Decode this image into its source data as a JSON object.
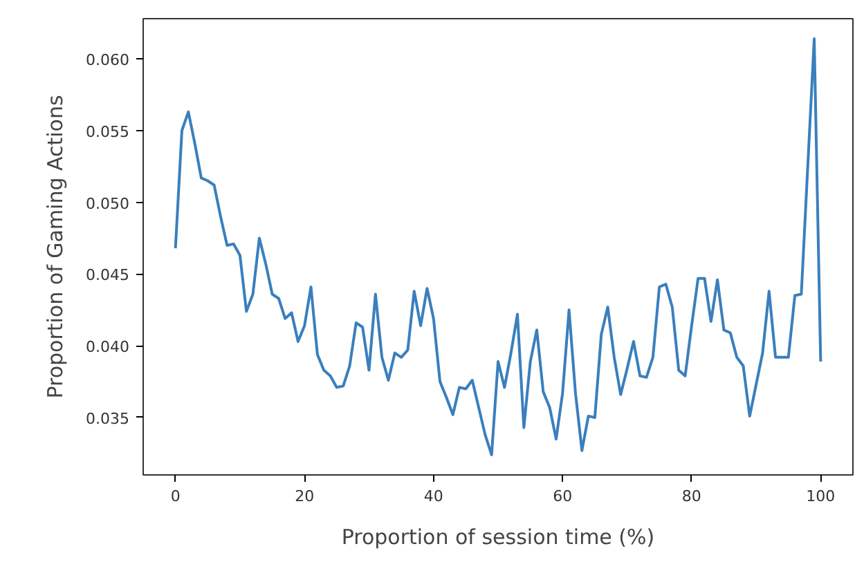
{
  "chart_data": {
    "type": "line",
    "xlabel": "Proportion of session time (%)",
    "ylabel": "Proportion of Gaming Actions",
    "x": [
      0,
      1,
      2,
      3,
      4,
      5,
      6,
      7,
      8,
      9,
      10,
      11,
      12,
      13,
      14,
      15,
      16,
      17,
      18,
      19,
      20,
      21,
      22,
      23,
      24,
      25,
      26,
      27,
      28,
      29,
      30,
      31,
      32,
      33,
      34,
      35,
      36,
      37,
      38,
      39,
      40,
      41,
      42,
      43,
      44,
      45,
      46,
      47,
      48,
      49,
      50,
      51,
      52,
      53,
      54,
      55,
      56,
      57,
      58,
      59,
      60,
      61,
      62,
      63,
      64,
      65,
      66,
      67,
      68,
      69,
      70,
      71,
      72,
      73,
      74,
      75,
      76,
      77,
      78,
      79,
      80,
      81,
      82,
      83,
      84,
      85,
      86,
      87,
      88,
      89,
      90,
      91,
      92,
      93,
      94,
      95,
      96,
      97,
      98,
      99,
      100
    ],
    "series": [
      {
        "color": "#3a7fbd",
        "values": [
          0.0468,
          0.055,
          0.0563,
          0.0541,
          0.0517,
          0.0515,
          0.0512,
          0.049,
          0.047,
          0.0471,
          0.0463,
          0.0424,
          0.0436,
          0.0475,
          0.0457,
          0.0436,
          0.0433,
          0.0419,
          0.0423,
          0.0403,
          0.0414,
          0.0441,
          0.0394,
          0.0383,
          0.0379,
          0.0371,
          0.0372,
          0.0386,
          0.0416,
          0.0413,
          0.0383,
          0.0436,
          0.0392,
          0.0376,
          0.0395,
          0.0392,
          0.0397,
          0.0438,
          0.0414,
          0.044,
          0.0419,
          0.0375,
          0.0364,
          0.0352,
          0.0371,
          0.037,
          0.0376,
          0.0357,
          0.0338,
          0.0324,
          0.0389,
          0.0371,
          0.0395,
          0.0422,
          0.0343,
          0.0389,
          0.0411,
          0.0368,
          0.0357,
          0.0335,
          0.0367,
          0.0425,
          0.0367,
          0.0327,
          0.0351,
          0.035,
          0.0408,
          0.0427,
          0.0392,
          0.0366,
          0.0384,
          0.0403,
          0.0379,
          0.0378,
          0.0392,
          0.0441,
          0.0443,
          0.0427,
          0.0383,
          0.0379,
          0.0414,
          0.0447,
          0.0447,
          0.0417,
          0.0446,
          0.0411,
          0.0409,
          0.0392,
          0.0386,
          0.0351,
          0.0373,
          0.0395,
          0.0438,
          0.0392,
          0.0392,
          0.0392,
          0.0435,
          0.0436,
          0.0525,
          0.0614,
          0.0389
        ]
      }
    ],
    "xlim": [
      -5,
      105
    ],
    "ylim": [
      0.031,
      0.0628
    ],
    "xticks": [
      0,
      20,
      40,
      60,
      80,
      100
    ],
    "yticks": [
      {
        "value": 0.035,
        "label": "0.035"
      },
      {
        "value": 0.04,
        "label": "0.040"
      },
      {
        "value": 0.045,
        "label": "0.045"
      },
      {
        "value": 0.05,
        "label": "0.050"
      },
      {
        "value": 0.055,
        "label": "0.055"
      },
      {
        "value": 0.06,
        "label": "0.060"
      }
    ],
    "grid": false,
    "marker": "none",
    "line_style": "solid"
  }
}
